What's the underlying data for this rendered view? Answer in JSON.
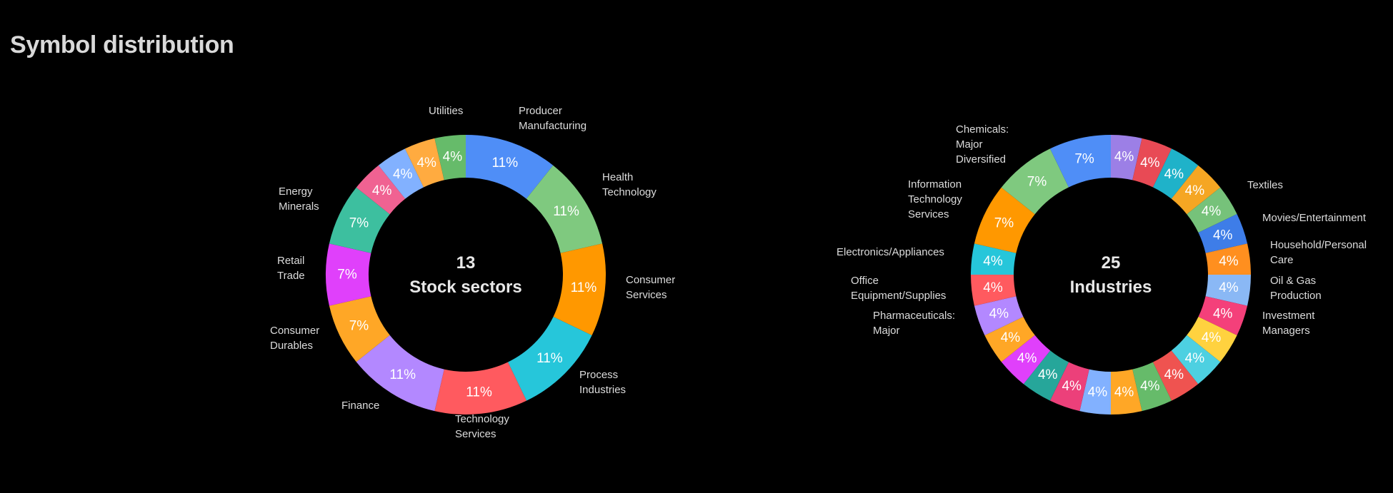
{
  "page": {
    "title": "Symbol distribution"
  },
  "chart_data": [
    {
      "type": "pie",
      "variant": "donut",
      "center": {
        "count": "13",
        "label": "Stock sectors"
      },
      "slices": [
        {
          "name": "Producer Manufacturing",
          "value": 3,
          "label": "11%",
          "color": "#4f8ef7",
          "callout": [
            "Producer",
            "Manufacturing"
          ]
        },
        {
          "name": "Health Technology",
          "value": 3,
          "label": "11%",
          "color": "#7fc97f",
          "callout": [
            "Health",
            "Technology"
          ]
        },
        {
          "name": "Consumer Services",
          "value": 3,
          "label": "11%",
          "color": "#ff9800",
          "callout": [
            "Consumer",
            "Services"
          ]
        },
        {
          "name": "Process Industries",
          "value": 3,
          "label": "11%",
          "color": "#26c6da",
          "callout": [
            "Process",
            "Industries"
          ]
        },
        {
          "name": "Technology Services",
          "value": 3,
          "label": "11%",
          "color": "#ff5a5f",
          "callout": [
            "Technology",
            "Services"
          ]
        },
        {
          "name": "Finance",
          "value": 3,
          "label": "11%",
          "color": "#b388ff",
          "callout": [
            "Finance"
          ]
        },
        {
          "name": "Consumer Durables",
          "value": 2,
          "label": "7%",
          "color": "#ffa726",
          "callout": [
            "Consumer",
            "Durables"
          ]
        },
        {
          "name": "Retail Trade",
          "value": 2,
          "label": "7%",
          "color": "#e040fb",
          "callout": [
            "Retail",
            "Trade"
          ]
        },
        {
          "name": "Energy Minerals",
          "value": 2,
          "label": "7%",
          "color": "#3dbf9f",
          "callout": [
            "Energy",
            "Minerals"
          ]
        },
        {
          "name": "",
          "value": 1,
          "label": "4%",
          "color": "#f06292",
          "callout": []
        },
        {
          "name": "",
          "value": 1,
          "label": "4%",
          "color": "#82b1ff",
          "callout": []
        },
        {
          "name": "",
          "value": 1,
          "label": "4%",
          "color": "#ffab40",
          "callout": []
        },
        {
          "name": "Utilities",
          "value": 1,
          "label": "4%",
          "color": "#66bb6a",
          "callout": [
            "Utilities"
          ]
        }
      ]
    },
    {
      "type": "pie",
      "variant": "donut",
      "center": {
        "count": "25",
        "label": "Industries"
      },
      "slices": [
        {
          "name": "",
          "value": 1,
          "label": "4%",
          "color": "#9c7fe6",
          "callout": []
        },
        {
          "name": "",
          "value": 1,
          "label": "4%",
          "color": "#e84a55",
          "callout": []
        },
        {
          "name": "",
          "value": 1,
          "label": "4%",
          "color": "#1fb2c9",
          "callout": []
        },
        {
          "name": "",
          "value": 1,
          "label": "4%",
          "color": "#f5a623",
          "callout": []
        },
        {
          "name": "Textiles",
          "value": 1,
          "label": "4%",
          "color": "#76c27a",
          "callout": [
            "Textiles"
          ]
        },
        {
          "name": "Movies/Entertainment",
          "value": 1,
          "label": "4%",
          "color": "#3e7de8",
          "callout": [
            "Movies/Entertainment"
          ]
        },
        {
          "name": "Household/Personal Care",
          "value": 1,
          "label": "4%",
          "color": "#ff8f1f",
          "callout": [
            "Household/Personal",
            "Care"
          ]
        },
        {
          "name": "Oil & Gas Production",
          "value": 1,
          "label": "4%",
          "color": "#8ab8f5",
          "callout": [
            "Oil & Gas",
            "Production"
          ]
        },
        {
          "name": "Investment Managers",
          "value": 1,
          "label": "4%",
          "color": "#f4407a",
          "callout": [
            "Investment",
            "Managers"
          ]
        },
        {
          "name": "",
          "value": 1,
          "label": "4%",
          "color": "#ffd23f",
          "callout": []
        },
        {
          "name": "",
          "value": 1,
          "label": "4%",
          "color": "#4dd0e1",
          "callout": []
        },
        {
          "name": "",
          "value": 1,
          "label": "4%",
          "color": "#ef5350",
          "callout": []
        },
        {
          "name": "",
          "value": 1,
          "label": "4%",
          "color": "#66bb6a",
          "callout": []
        },
        {
          "name": "",
          "value": 1,
          "label": "4%",
          "color": "#ffa726",
          "callout": []
        },
        {
          "name": "",
          "value": 1,
          "label": "4%",
          "color": "#82b1ff",
          "callout": []
        },
        {
          "name": "",
          "value": 1,
          "label": "4%",
          "color": "#ec407a",
          "callout": []
        },
        {
          "name": "",
          "value": 1,
          "label": "4%",
          "color": "#26a69a",
          "callout": []
        },
        {
          "name": "",
          "value": 1,
          "label": "4%",
          "color": "#e040fb",
          "callout": []
        },
        {
          "name": "",
          "value": 1,
          "label": "4%",
          "color": "#ffa726",
          "callout": []
        },
        {
          "name": "Pharmaceuticals: Major",
          "value": 1,
          "label": "4%",
          "color": "#b388ff",
          "callout": [
            "Pharmaceuticals:",
            "Major"
          ]
        },
        {
          "name": "Office Equipment/Supplies",
          "value": 1,
          "label": "4%",
          "color": "#ff5a5f",
          "callout": [
            "Office",
            "Equipment/Supplies"
          ]
        },
        {
          "name": "Electronics/Appliances",
          "value": 1,
          "label": "4%",
          "color": "#26c6da",
          "callout": [
            "Electronics/Appliances"
          ]
        },
        {
          "name": "Information Technology Services",
          "value": 2,
          "label": "7%",
          "color": "#ff9800",
          "callout": [
            "Information",
            "Technology",
            "Services"
          ]
        },
        {
          "name": "Chemicals: Major Diversified",
          "value": 2,
          "label": "7%",
          "color": "#7fc97f",
          "callout": [
            "Chemicals:",
            "Major",
            "Diversified"
          ]
        },
        {
          "name": "",
          "value": 2,
          "label": "7%",
          "color": "#4f8ef7",
          "callout": []
        }
      ]
    }
  ]
}
